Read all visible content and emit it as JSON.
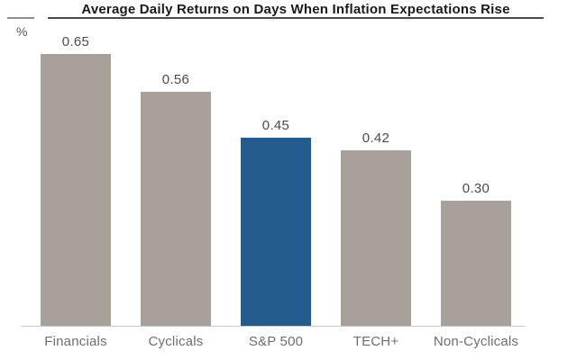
{
  "chart_data": {
    "type": "bar",
    "title": "Average Daily Returns on Days When Inflation Expectations Rise",
    "unit_label": "%",
    "categories": [
      "Financials",
      "Cyclicals",
      "S&P 500",
      "TECH+",
      "Non-Cyclicals"
    ],
    "values": [
      0.65,
      0.56,
      0.45,
      0.42,
      0.3
    ],
    "value_labels": [
      "0.65",
      "0.56",
      "0.45",
      "0.42",
      "0.30"
    ],
    "highlight_index": 2,
    "ylim": [
      0,
      0.78
    ],
    "grid": false,
    "legend": "none",
    "colors": {
      "bar": "#a8a19a",
      "highlight_bar": "#235c8c",
      "axis_line": "#cbcbcb",
      "title": "#1a1a1a",
      "value_label": "#4b4b4b",
      "category_label": "#6e6e6e"
    }
  }
}
